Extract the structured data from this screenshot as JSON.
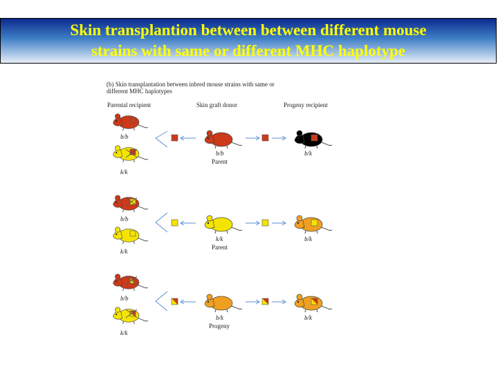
{
  "title": {
    "line1": "Skin transplantion between between different mouse",
    "line2": "strains with same or different MHC haplotype"
  },
  "figure": {
    "caption_line1": "(b) Skin transplantation between inbred mouse strains with same or",
    "caption_line2": "different MHC haplotypes",
    "col_parental": "Parental recipient",
    "col_donor": "Skin graft donor",
    "col_progeny": "Progeny recipient",
    "rows": [
      {
        "recipient_top": "b/b",
        "recipient_bottom": "k/k",
        "donor": "b/b",
        "donor_role": "Parent",
        "progeny": "b/k"
      },
      {
        "recipient_top": "b/b",
        "recipient_bottom": "k/k",
        "donor": "k/k",
        "donor_role": "Parent",
        "progeny": "b/k"
      },
      {
        "recipient_top": "b/b",
        "recipient_bottom": "k/k",
        "donor": "b/k",
        "donor_role": "Progeny",
        "progeny": "b/k"
      }
    ]
  },
  "colors": {
    "strain_b": "#cc3a1a",
    "strain_k": "#f4e400",
    "title_text": "#ffff00",
    "arrow": "#5b8fd0"
  }
}
